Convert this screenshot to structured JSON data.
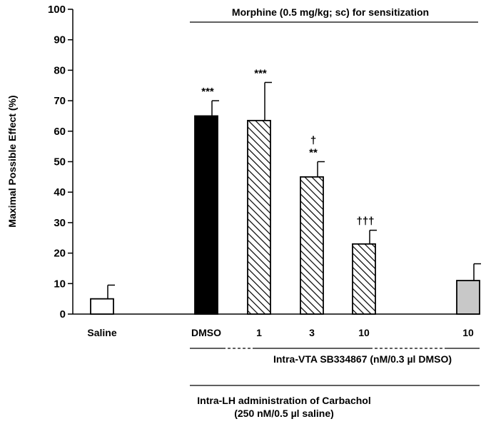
{
  "chart_data": {
    "type": "bar",
    "ylabel": "Maximal Possible Effect (%)",
    "ylim": [
      0,
      100
    ],
    "yticks": [
      0,
      10,
      20,
      30,
      40,
      50,
      60,
      70,
      80,
      90,
      100
    ],
    "grid": false,
    "categories": [
      "Saline",
      "DMSO",
      "1",
      "3",
      "10",
      "10"
    ],
    "values": [
      5,
      65,
      63.5,
      45,
      23,
      11
    ],
    "errors": [
      4.5,
      5,
      12.5,
      5,
      4.5,
      5.5
    ],
    "fills": [
      "white",
      "black",
      "hatch",
      "hatch",
      "hatch",
      "gray"
    ],
    "significance": [
      "",
      "***",
      "***",
      "†\n**",
      "†††",
      ""
    ],
    "annotations": {
      "top": "Morphine (0.5 mg/kg; sc) for sensitization",
      "vta": "Intra-VTA  SB334867 (nM/0.3 µl DMSO)",
      "lh_line1": "Intra-LH administration of Carbachol",
      "lh_line2": "(250 nM/0.5 µl saline)"
    },
    "colors": {
      "black": "#000000",
      "gray": "#c8c8c8",
      "white": "#ffffff"
    }
  }
}
